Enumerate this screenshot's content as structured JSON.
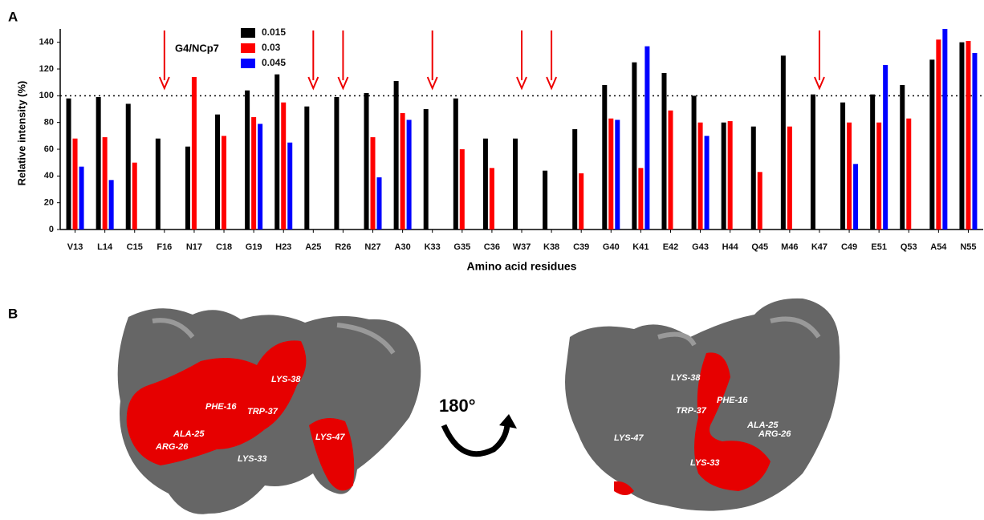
{
  "panel_labels": [
    "A",
    "B"
  ],
  "chart_data": {
    "type": "bar",
    "ylabel": "Relative intensity (%)",
    "xlabel": "Amino acid residues",
    "legend_title": "G4/NCp7",
    "categories": [
      "V13",
      "L14",
      "C15",
      "F16",
      "N17",
      "C18",
      "G19",
      "H23",
      "A25",
      "R26",
      "N27",
      "A30",
      "K33",
      "G35",
      "C36",
      "W37",
      "K38",
      "C39",
      "G40",
      "K41",
      "E42",
      "G43",
      "H44",
      "Q45",
      "M46",
      "K47",
      "C49",
      "E51",
      "Q53",
      "A54",
      "N55"
    ],
    "series": [
      {
        "name": "0.015",
        "color": "#000000",
        "values": [
          98,
          99,
          94,
          68,
          62,
          86,
          104,
          116,
          92,
          99,
          102,
          111,
          90,
          98,
          68,
          68,
          44,
          75,
          108,
          125,
          117,
          100,
          80,
          77,
          130,
          101,
          95,
          101,
          108,
          127,
          140
        ]
      },
      {
        "name": "0.03",
        "color": "#ff0000",
        "values": [
          68,
          69,
          50,
          null,
          114,
          70,
          84,
          95,
          null,
          null,
          69,
          87,
          null,
          60,
          46,
          null,
          null,
          42,
          83,
          46,
          89,
          80,
          81,
          43,
          77,
          null,
          80,
          80,
          83,
          142,
          141
        ]
      },
      {
        "name": "0.045",
        "color": "#0000ff",
        "values": [
          47,
          37,
          null,
          null,
          null,
          null,
          79,
          65,
          null,
          null,
          39,
          82,
          null,
          null,
          null,
          null,
          null,
          null,
          82,
          137,
          null,
          70,
          null,
          null,
          null,
          null,
          49,
          123,
          null,
          150,
          132
        ]
      }
    ],
    "ylim": [
      0,
      150
    ],
    "yticks": [
      0,
      20,
      40,
      60,
      80,
      100,
      120,
      140
    ],
    "reference_line": 100
  },
  "structure": {
    "rotation": "180°",
    "left_labels": [
      "LYS-38",
      "PHE-16",
      "TRP-37",
      "ALA-25",
      "ARG-26",
      "LYS-33",
      "LYS-47"
    ],
    "right_labels": [
      "LYS-38",
      "PHE-16",
      "TRP-37",
      "ALA-25",
      "ARG-26",
      "LYS-47",
      "LYS-33"
    ]
  }
}
